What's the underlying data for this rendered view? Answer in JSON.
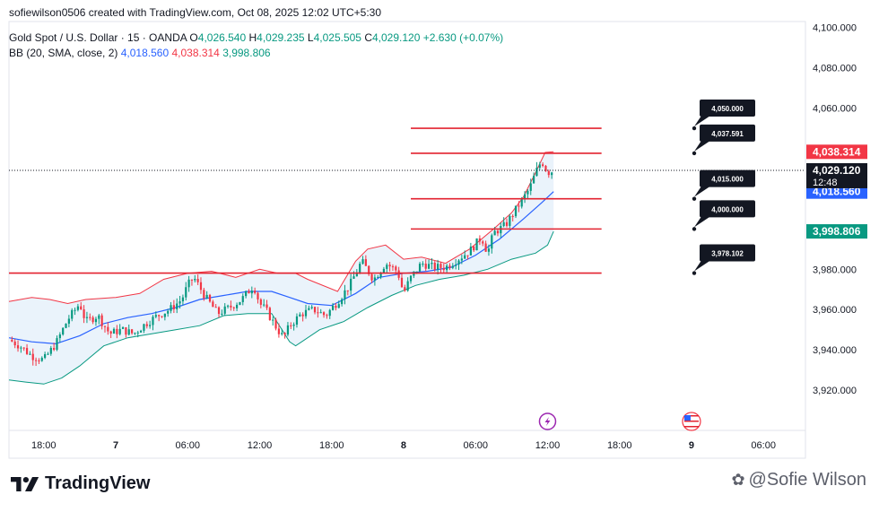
{
  "creator_line": "sofiewilson0506 created with TradingView.com, Oct 08, 2025 12:02 UTC+5:30",
  "symbol": {
    "name": "Gold Spot / U.S. Dollar · 15 · OANDA",
    "o_label": "O",
    "o": "4,026.540",
    "h_label": "H",
    "h": "4,029.235",
    "l_label": "L",
    "l": "4,025.505",
    "c_label": "C",
    "c": "4,029.120",
    "change": "+2.630 (+0.07%)"
  },
  "indicator": {
    "name": "BB (20, SMA, close, 2)",
    "basis": "4,018.560",
    "upper": "4,038.314",
    "lower": "3,998.806"
  },
  "colors": {
    "up": "#089981",
    "down": "#f23645",
    "basis": "#2962ff",
    "upper_band": "#f23645",
    "lower_band": "#089981",
    "band_fill": "#eaf3fb",
    "hline": "#e3222f",
    "price_tag": "#131722"
  },
  "brand": "TradingView",
  "watermark": "@Sofie Wilson",
  "chart_data": {
    "type": "candlestick",
    "y_range": [
      3900,
      4103
    ],
    "y_ticks": [
      {
        "v": 3920,
        "label": "3,920.000"
      },
      {
        "v": 3940,
        "label": "3,940.000"
      },
      {
        "v": 3960,
        "label": "3,960.000"
      },
      {
        "v": 3980,
        "label": "3,980.000"
      },
      {
        "v": 4000,
        "label": "4,000.000"
      },
      {
        "v": 4020,
        "label": "4,020.000"
      },
      {
        "v": 4040,
        "label": "4,040.000"
      },
      {
        "v": 4060,
        "label": "4,060.000"
      },
      {
        "v": 4080,
        "label": "4,080.000"
      },
      {
        "v": 4100,
        "label": "4,100.000"
      }
    ],
    "x_ticks": [
      {
        "t": 0,
        "label": "18:00"
      },
      {
        "t": 6,
        "label": "7",
        "bold": true
      },
      {
        "t": 12,
        "label": "06:00"
      },
      {
        "t": 18,
        "label": "12:00"
      },
      {
        "t": 24,
        "label": "18:00"
      },
      {
        "t": 30,
        "label": "8",
        "bold": true
      },
      {
        "t": 36,
        "label": "06:00"
      },
      {
        "t": 42,
        "label": "12:00"
      },
      {
        "t": 48,
        "label": "18:00"
      },
      {
        "t": 54,
        "label": "9",
        "bold": true
      },
      {
        "t": 60,
        "label": "06:00"
      }
    ],
    "x_range_hours": [
      -2.9,
      63.5
    ],
    "last_price": {
      "value": 4029.12,
      "label": "4,029.120",
      "countdown": "12:48"
    },
    "bands_latest": [
      {
        "value": 4038.314,
        "label": "4,038.314",
        "color": "#f23645",
        "text_color": "#ffffff"
      },
      {
        "value": 4018.56,
        "label": "4,018.560",
        "color": "#2962ff",
        "text_color": "#ffffff"
      },
      {
        "value": 3998.806,
        "label": "3,998.806",
        "color": "#089981",
        "text_color": "#ffffff"
      }
    ],
    "levels": [
      {
        "value": 4050.0,
        "label": "4,050.000",
        "start_hour": 30.6,
        "end_hour": 46.5
      },
      {
        "value": 4037.591,
        "label": "4,037.591",
        "start_hour": 30.6,
        "end_hour": 46.5
      },
      {
        "value": 4015.0,
        "label": "4,015.000",
        "start_hour": 30.6,
        "end_hour": 46.5
      },
      {
        "value": 4000.0,
        "label": "4,000.000",
        "start_hour": 30.6,
        "end_hour": 46.5
      },
      {
        "value": 3978.102,
        "label": "3,978.102",
        "start_hour": -2.9,
        "end_hour": 46.5
      }
    ],
    "path_points": [
      [
        -2.9,
        3945
      ],
      [
        -2.0,
        3942
      ],
      [
        -1.0,
        3937
      ],
      [
        0.0,
        3935
      ],
      [
        1.0,
        3943
      ],
      [
        2.0,
        3955
      ],
      [
        3.0,
        3963
      ],
      [
        3.5,
        3954
      ],
      [
        4.5,
        3957
      ],
      [
        5.5,
        3948
      ],
      [
        6.5,
        3950
      ],
      [
        7.5,
        3948
      ],
      [
        8.5,
        3953
      ],
      [
        9.5,
        3957
      ],
      [
        10.5,
        3960
      ],
      [
        11.5,
        3965
      ],
      [
        12.0,
        3972
      ],
      [
        12.5,
        3976
      ],
      [
        13.5,
        3966
      ],
      [
        14.5,
        3958
      ],
      [
        15.5,
        3961
      ],
      [
        16.5,
        3965
      ],
      [
        17.5,
        3972
      ],
      [
        18.0,
        3963
      ],
      [
        18.5,
        3960
      ],
      [
        19.5,
        3950
      ],
      [
        20.0,
        3946
      ],
      [
        20.5,
        3952
      ],
      [
        21.5,
        3958
      ],
      [
        22.5,
        3960
      ],
      [
        23.5,
        3957
      ],
      [
        24.5,
        3964
      ],
      [
        25.5,
        3972
      ],
      [
        26.5,
        3984
      ],
      [
        27.5,
        3975
      ],
      [
        28.5,
        3983
      ],
      [
        29.5,
        3979
      ],
      [
        30.0,
        3968
      ],
      [
        30.5,
        3975
      ],
      [
        31.5,
        3983
      ],
      [
        32.5,
        3981
      ],
      [
        33.5,
        3981
      ],
      [
        34.5,
        3985
      ],
      [
        35.5,
        3989
      ],
      [
        36.5,
        3996
      ],
      [
        37.0,
        3988
      ],
      [
        37.5,
        3998
      ],
      [
        38.5,
        4002
      ],
      [
        39.5,
        4011
      ],
      [
        40.5,
        4020
      ],
      [
        41.0,
        4028
      ],
      [
        41.5,
        4034
      ],
      [
        42.0,
        4028
      ],
      [
        42.5,
        4029
      ]
    ],
    "bb_upper_points": [
      [
        -2.9,
        3964
      ],
      [
        -1.0,
        3966
      ],
      [
        0.5,
        3965
      ],
      [
        2.0,
        3963
      ],
      [
        3.5,
        3965
      ],
      [
        6.0,
        3966
      ],
      [
        8.0,
        3968
      ],
      [
        10.0,
        3975
      ],
      [
        12.0,
        3978
      ],
      [
        14.0,
        3979
      ],
      [
        16.0,
        3976
      ],
      [
        18.0,
        3980
      ],
      [
        19.5,
        3978
      ],
      [
        21.0,
        3978
      ],
      [
        22.0,
        3975
      ],
      [
        24.5,
        3969
      ],
      [
        26.0,
        3984
      ],
      [
        27.0,
        3990
      ],
      [
        28.5,
        3992
      ],
      [
        30.0,
        3985
      ],
      [
        31.5,
        3986
      ],
      [
        33.5,
        3983
      ],
      [
        35.5,
        3990
      ],
      [
        37.5,
        4000
      ],
      [
        39.0,
        4008
      ],
      [
        40.0,
        4016
      ],
      [
        41.0,
        4028
      ],
      [
        41.8,
        4038
      ],
      [
        42.5,
        4038.3
      ]
    ],
    "bb_basis_points": [
      [
        -2.9,
        3946
      ],
      [
        -1.0,
        3944
      ],
      [
        1.0,
        3943
      ],
      [
        3.0,
        3947
      ],
      [
        5.0,
        3953
      ],
      [
        7.0,
        3956
      ],
      [
        9.0,
        3958
      ],
      [
        11.0,
        3961
      ],
      [
        13.0,
        3965
      ],
      [
        15.0,
        3967
      ],
      [
        17.0,
        3969
      ],
      [
        19.0,
        3969
      ],
      [
        20.5,
        3966
      ],
      [
        22.0,
        3963
      ],
      [
        24.0,
        3962
      ],
      [
        26.0,
        3968
      ],
      [
        28.0,
        3976
      ],
      [
        30.0,
        3978
      ],
      [
        32.0,
        3979
      ],
      [
        34.0,
        3981
      ],
      [
        36.0,
        3987
      ],
      [
        38.0,
        3995
      ],
      [
        40.0,
        4005
      ],
      [
        41.5,
        4013
      ],
      [
        42.5,
        4018.56
      ]
    ],
    "bb_lower_points": [
      [
        -2.9,
        3925
      ],
      [
        -1.5,
        3924
      ],
      [
        0.0,
        3923
      ],
      [
        1.5,
        3926
      ],
      [
        3.0,
        3932
      ],
      [
        5.0,
        3942
      ],
      [
        7.0,
        3946
      ],
      [
        9.0,
        3948
      ],
      [
        11.0,
        3950
      ],
      [
        13.0,
        3952
      ],
      [
        15.0,
        3957
      ],
      [
        17.0,
        3958
      ],
      [
        19.0,
        3958
      ],
      [
        20.5,
        3944
      ],
      [
        21.0,
        3942
      ],
      [
        23.0,
        3950
      ],
      [
        25.0,
        3954
      ],
      [
        27.0,
        3961
      ],
      [
        29.0,
        3967
      ],
      [
        31.0,
        3972
      ],
      [
        33.0,
        3975
      ],
      [
        35.0,
        3977
      ],
      [
        37.0,
        3980
      ],
      [
        39.0,
        3985
      ],
      [
        41.0,
        3988
      ],
      [
        42.0,
        3992
      ],
      [
        42.5,
        3998.8
      ]
    ],
    "events": [
      {
        "hour": 42.0,
        "kind": "lightning"
      },
      {
        "hour": 54.0,
        "kind": "us-flag"
      }
    ]
  }
}
